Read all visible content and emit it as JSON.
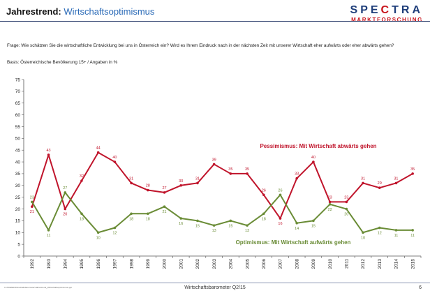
{
  "header": {
    "title_bold": "Jahrestrend:",
    "title_rest": "Wirtschaftsoptimismus",
    "logo_brand": "SPECTRA",
    "logo_sub": "MARKTFORSCHUNG"
  },
  "question": "Frage: Wie schätzen Sie die wirtschaftliche Entwicklung bei uns in Österreich ein? Wird es Ihrem Eindruck nach in der nächsten Zeit mit unserer Wirtschaft eher aufwärts oder eher abwärts gehen?",
  "basis": "Basis: Österreichische Bevölkerung 15+ / Angaben in %",
  "footer": {
    "left": "C:\\TREND\\Wirtschaftsbarometer\\Jahrestrend_Wirtschaftsoptimismus.ppt",
    "center": "Wirtschaftsbarometer Q2/15",
    "page": "6"
  },
  "colors": {
    "pessimism": "#c0142b",
    "optimism": "#6a8c36",
    "accent": "#2a6ab7"
  },
  "chart_data": {
    "type": "line",
    "x": [
      "1992",
      "1993",
      "1994",
      "1995",
      "1996",
      "1997",
      "1998",
      "1999",
      "2000",
      "2001",
      "2002",
      "2003",
      "2004",
      "2005",
      "2006",
      "2007",
      "2008",
      "2009",
      "2010",
      "2011",
      "2012",
      "2013",
      "2014",
      "2015"
    ],
    "ylim": [
      0,
      75
    ],
    "yticks": [
      0,
      5,
      10,
      15,
      20,
      25,
      30,
      35,
      40,
      45,
      50,
      55,
      60,
      65,
      70,
      75
    ],
    "grid": false,
    "series": [
      {
        "name": "Pessimismus: Mit Wirtschaft abwärts gehen",
        "color": "#c0142b",
        "values": [
          21,
          43,
          20,
          32,
          44,
          40,
          31,
          28,
          27,
          30,
          31,
          39,
          35,
          35,
          26,
          16,
          33,
          40,
          23,
          23,
          31,
          29,
          31,
          35
        ]
      },
      {
        "name": "Optimismus: Mit Wirtschaft aufwärts gehen",
        "color": "#6a8c36",
        "values": [
          23,
          11,
          27,
          18,
          10,
          12,
          18,
          18,
          21,
          16,
          15,
          13,
          15,
          13,
          18,
          26,
          14,
          15,
          22,
          20,
          10,
          12,
          11,
          11
        ]
      }
    ]
  }
}
